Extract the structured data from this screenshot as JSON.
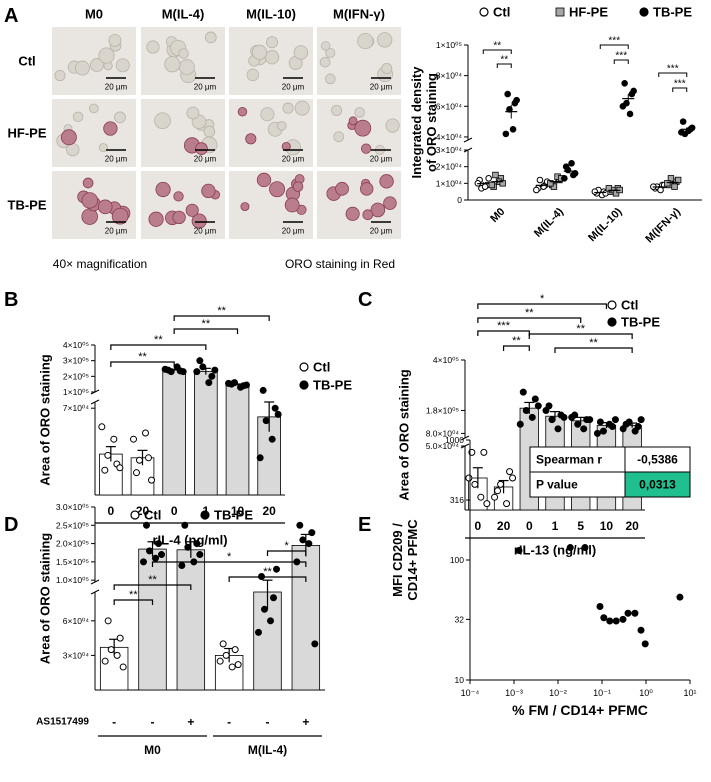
{
  "panel_labels": [
    "A",
    "B",
    "C",
    "D",
    "E"
  ],
  "image_grid": {
    "columns": [
      "M0",
      "M(IL-4)",
      "M(IL-10)",
      "M(IFN-γ)"
    ],
    "rows": [
      "Ctl",
      "HF-PE",
      "TB-PE"
    ],
    "scale_bar": "20 µm",
    "caption_left": "40× magnification",
    "caption_right": "ORO staining in Red"
  },
  "chart_data": [
    {
      "type": "dot",
      "y_label": [
        "Integrated density",
        "of ORO staining"
      ],
      "categories": [
        "M0",
        "M(IL-4)",
        "M(IL-10)",
        "M(IFN-γ)"
      ],
      "series": [
        {
          "name": "Ctl",
          "marker": "open-circle",
          "color": "#000000",
          "values": [
            9800,
            8800,
            4500,
            7800
          ],
          "errors": [
            1000,
            1000,
            500,
            500
          ],
          "points": [
            [
              12000,
              9000,
              7000,
              8000,
              10000,
              13000
            ],
            [
              7000,
              9000,
              12000,
              8000,
              6000,
              11000
            ],
            [
              4000,
              5000,
              6000,
              3000,
              5000,
              4000
            ],
            [
              7000,
              9000,
              8000,
              6000,
              8000,
              9000
            ]
          ]
        },
        {
          "name": "HF-PE",
          "marker": "square",
          "color": "#a6a6a6",
          "values": [
            11000,
            11000,
            5800,
            10500
          ],
          "errors": [
            1100,
            900,
            500,
            700
          ],
          "points": [
            [
              8000,
              13000,
              15000,
              11000,
              9000,
              10000
            ],
            [
              9000,
              12000,
              8000,
              14000,
              10000,
              13000
            ],
            [
              5000,
              7000,
              6000,
              4000,
              7000,
              6000
            ],
            [
              9000,
              11000,
              13000,
              8000,
              10000,
              12000
            ]
          ]
        },
        {
          "name": "TB-PE",
          "marker": "circle",
          "color": "#000000",
          "values": [
            56500,
            17300,
            65000,
            45000
          ],
          "errors": [
            4500,
            1400,
            3000,
            1200
          ],
          "points": [
            [
              68000,
              62000,
              58000,
              45000,
              42000,
              64000
            ],
            [
              20000,
              15000,
              18000,
              22000,
              13000,
              16000
            ],
            [
              75000,
              68000,
              62000,
              55000,
              60000,
              70000
            ],
            [
              50000,
              45000,
              42000,
              44000,
              43000,
              46000
            ]
          ]
        }
      ],
      "ylim": [
        0,
        100000
      ],
      "ybreak": [
        30000,
        38000
      ],
      "yticks": [
        0,
        {
          "value": 10000,
          "label": "1×10⁰⁴"
        },
        {
          "value": 20000,
          "label": "2×10⁰⁴"
        },
        {
          "value": 30000,
          "label": "3×10⁰⁴"
        },
        {
          "value": 40000,
          "label": "4×10⁰⁴"
        },
        {
          "value": 60000,
          "label": "6×10⁰⁴"
        },
        {
          "value": 80000,
          "label": "8×10⁰⁴"
        },
        {
          "value": 100000,
          "label": "1×10⁰⁵"
        }
      ],
      "brackets": [
        {
          "label": "**",
          "category": 0,
          "between": [
            0,
            2
          ]
        },
        {
          "label": "**",
          "category": 0,
          "between": [
            1,
            2
          ]
        },
        {
          "label": "***",
          "category": 2,
          "between": [
            0,
            2
          ]
        },
        {
          "label": "***",
          "category": 2,
          "between": [
            1,
            2
          ]
        },
        {
          "label": "***",
          "category": 3,
          "between": [
            0,
            2
          ]
        },
        {
          "label": "***",
          "category": 3,
          "between": [
            1,
            2
          ]
        }
      ]
    },
    {
      "type": "bar",
      "y_label": [
        "Area of ORO staining"
      ],
      "x_label": "rIL-4 (ng/ml)",
      "categories": [
        "0",
        "20",
        "0",
        "1",
        "10",
        "20"
      ],
      "series": [
        {
          "name": "Ctl",
          "marker": "open-circle",
          "color": "#ffffff",
          "values": [
            33000,
            30000,
            null,
            null,
            null,
            null
          ],
          "errors": [
            6000,
            6000,
            null,
            null,
            null,
            null
          ],
          "points": [
            [
              20000,
              25000,
              32000,
              45000,
              55000,
              22000
            ],
            [
              18000,
              30000,
              28000,
              50000,
              45000,
              12000
            ],
            null,
            null,
            null,
            null
          ]
        },
        {
          "name": "TB-PE",
          "marker": "circle",
          "color": "#d9d9d9",
          "values": [
            null,
            null,
            240000,
            231000,
            147000,
            63000
          ],
          "errors": [
            null,
            null,
            5000,
            20000,
            4000,
            12000
          ],
          "points": [
            null,
            null,
            [
              240000,
              235000,
              230000,
              260000,
              245000,
              230000
            ],
            [
              300000,
              200000,
              260000,
              160000,
              230000,
              240000
            ],
            [
              150000,
              140000,
              160000,
              130000,
              155000,
              145000
            ],
            [
              110000,
              70000,
              60000,
              45000,
              30000,
              65000
            ]
          ]
        }
      ],
      "ylim": [
        0,
        400000
      ],
      "ybreak": [
        75000,
        100000
      ],
      "yticks": [
        {
          "value": 70000,
          "label": "7×10⁰⁴"
        },
        {
          "value": 100000,
          "label": "1×10⁰⁵"
        },
        {
          "value": 200000,
          "label": "2×10⁰⁵"
        },
        {
          "value": 300000,
          "label": "3×10⁰⁵"
        },
        {
          "value": 400000,
          "label": "4×10⁰⁵"
        }
      ],
      "brackets": [
        {
          "label": "**",
          "between": [
            0,
            2
          ]
        },
        {
          "label": "**",
          "between": [
            0,
            3
          ]
        },
        {
          "label": "**",
          "between": [
            2,
            4
          ]
        },
        {
          "label": "**",
          "between": [
            2,
            5
          ]
        }
      ]
    },
    {
      "type": "bar",
      "y_label": [
        "Area of ORO staining"
      ],
      "x_label": "rIL-13 (ng/ml)",
      "categories": [
        "0",
        "20",
        "0",
        "1",
        "5",
        "10",
        "20"
      ],
      "series": [
        {
          "name": "Ctl",
          "marker": "open-circle",
          "color": "#ffffff",
          "values": [
            25000,
            18000,
            null,
            null,
            null,
            null,
            null
          ],
          "errors": [
            8000,
            5000,
            null,
            null,
            null,
            null,
            null
          ],
          "points": [
            [
              45000,
              45000,
              20000,
              10000,
              25000,
              5000
            ],
            [
              15000,
              30000,
              20000,
              5000,
              10000,
              25000
            ],
            null,
            null,
            null,
            null,
            null
          ]
        },
        {
          "name": "TB-PE",
          "marker": "circle",
          "color": "#d9d9d9",
          "values": [
            null,
            null,
            190000,
            155000,
            135000,
            115000,
            115000
          ],
          "errors": [
            null,
            null,
            25000,
            20000,
            15000,
            12000,
            10000
          ],
          "points": [
            null,
            null,
            [
              260000,
              230000,
              180000,
              150000,
              120000,
              200000
            ],
            [
              200000,
              160000,
              140000,
              100000,
              180000,
              150000
            ],
            [
              160000,
              140000,
              120000,
              100000,
              150000,
              140000
            ],
            [
              130000,
              110000,
              90000,
              120000,
              80000,
              140000
            ],
            [
              120000,
              110000,
              130000,
              90000,
              100000,
              140000
            ]
          ]
        }
      ],
      "ylim": [
        0,
        400000
      ],
      "ybreak": [
        50000,
        60000
      ],
      "yticks": [
        {
          "value": 50000,
          "label": "5.0×10⁰⁴"
        },
        {
          "value": 80000,
          "label": "8.0×10⁰⁴"
        },
        {
          "value": 180000,
          "label": "1.8×10⁰⁵"
        },
        {
          "value": 400000,
          "label": "4×10⁰⁵"
        }
      ],
      "brackets": [
        {
          "label": "*",
          "between": [
            0,
            5
          ]
        },
        {
          "label": "**",
          "between": [
            0,
            4
          ]
        },
        {
          "label": "***",
          "between": [
            0,
            2
          ]
        },
        {
          "label": "**",
          "between": [
            1,
            2
          ]
        },
        {
          "label": "**",
          "between": [
            2,
            6
          ]
        },
        {
          "label": "**",
          "between": [
            3,
            6
          ]
        }
      ]
    },
    {
      "type": "bar",
      "y_label": [
        "Area of ORO staining"
      ],
      "x_row_label": "AS1517499",
      "x_groups": [
        {
          "label": "M0",
          "categories": [
            0,
            2
          ]
        },
        {
          "label": "M(IL-4)",
          "categories": [
            3,
            5
          ]
        }
      ],
      "categories": [
        "-",
        "-",
        "+",
        "-",
        "-",
        "+"
      ],
      "series": [
        {
          "name": "Ctl",
          "marker": "open-circle",
          "color": "#ffffff",
          "values": [
            37000,
            null,
            null,
            30000,
            null,
            null
          ],
          "errors": [
            7000,
            null,
            null,
            6000,
            null,
            null
          ],
          "points": [
            [
              60000,
              45000,
              35000,
              30000,
              25000,
              20000
            ],
            null,
            null,
            [
              40000,
              35000,
              30000,
              20000,
              25000,
              22000
            ],
            null,
            null
          ]
        },
        {
          "name": "TB-PE",
          "marker": "circle",
          "color": "#d9d9d9",
          "values": [
            null,
            185000,
            183000,
            null,
            85000,
            195000
          ],
          "errors": [
            null,
            20000,
            22000,
            null,
            15000,
            30000
          ],
          "points": [
            null,
            [
              250000,
              200000,
              180000,
              160000,
              150000,
              170000
            ],
            [
              250000,
              200000,
              190000,
              150000,
              140000,
              170000
            ],
            null,
            [
              110000,
              80000,
              70000,
              60000,
              50000,
              130000
            ],
            [
              250000,
              230000,
              210000,
              200000,
              150000,
              40000
            ]
          ]
        }
      ],
      "ylim": [
        0,
        300000
      ],
      "ybreak": [
        85000,
        95000
      ],
      "yticks": [
        {
          "value": 30000,
          "label": "3×10⁰⁴"
        },
        {
          "value": 60000,
          "label": "6×10⁰⁴"
        },
        {
          "value": 100000,
          "label": "1.0×10⁰⁵"
        },
        {
          "value": 150000,
          "label": "1.5×10⁰⁵"
        },
        {
          "value": 200000,
          "label": "2.0×10⁰⁵"
        },
        {
          "value": 250000,
          "label": "2.5×10⁰⁵"
        },
        {
          "value": 300000,
          "label": "3.0×10⁰⁵"
        }
      ],
      "brackets": [
        {
          "label": "**",
          "between": [
            0,
            1
          ]
        },
        {
          "label": "**",
          "between": [
            0,
            2
          ]
        },
        {
          "label": "**",
          "between": [
            3,
            5
          ]
        },
        {
          "label": "*",
          "between": [
            1,
            5
          ]
        },
        {
          "label": "*",
          "between": [
            4,
            5
          ]
        }
      ]
    },
    {
      "type": "scatter",
      "y_label": [
        "MFI CD209 /",
        "CD14+ PFMC"
      ],
      "x_label": "% FM  /  CD14+ PFMC",
      "x": [
        0.0013,
        0.009,
        0.019,
        0.041,
        0.09,
        0.11,
        0.15,
        0.21,
        0.3,
        0.39,
        0.56,
        0.77,
        0.96,
        5.9
      ],
      "values": [
        120,
        360,
        127,
        127,
        41,
        33,
        31,
        31,
        32,
        36,
        36,
        26,
        20,
        49
      ],
      "color": "#000000",
      "xlog": true,
      "ylog": true,
      "xlim": [
        0.0001,
        10
      ],
      "ylim": [
        10,
        1000
      ],
      "xticks": [
        {
          "value": 0.0001,
          "label": "10⁻⁴"
        },
        {
          "value": 0.001,
          "label": "10⁻³"
        },
        {
          "value": 0.01,
          "label": "10⁻²"
        },
        {
          "value": 0.1,
          "label": "10⁻¹"
        },
        {
          "value": 1,
          "label": "10⁰"
        },
        {
          "value": 10,
          "label": "10¹"
        }
      ],
      "yticks": [
        10,
        32,
        100,
        316,
        1000
      ],
      "table": {
        "rows": [
          [
            "Spearman r",
            "-0,5386"
          ],
          [
            "P value",
            "0,0313"
          ]
        ],
        "highlight_color": "#1fbf8f"
      }
    }
  ]
}
